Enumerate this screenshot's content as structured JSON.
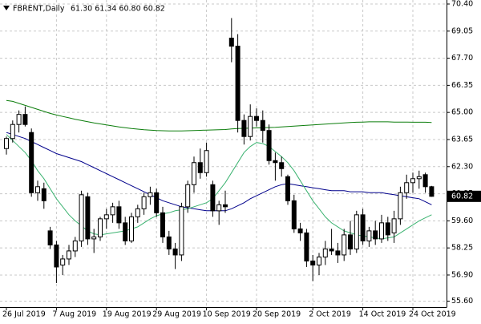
{
  "chart_data": {
    "type": "candlestick",
    "title": "FBRENT,Daily",
    "info": "61.30 61.34 60.80 60.82",
    "categories": [
      "26 Jul 2019",
      null,
      null,
      null,
      null,
      null,
      null,
      null,
      "7 Aug 2019",
      null,
      null,
      null,
      null,
      null,
      null,
      null,
      "19 Aug 2019",
      null,
      null,
      null,
      null,
      null,
      null,
      null,
      "29 Aug 2019",
      null,
      null,
      null,
      null,
      null,
      null,
      null,
      "10 Sep 2019",
      null,
      null,
      null,
      null,
      null,
      null,
      null,
      "20 Sep 2019",
      null,
      null,
      null,
      null,
      null,
      null,
      null,
      null,
      "2 Oct 2019",
      null,
      null,
      null,
      null,
      null,
      null,
      null,
      "14 Oct 2019",
      null,
      null,
      null,
      null,
      null,
      null,
      null,
      "24 Oct 2019",
      null,
      null,
      null
    ],
    "open": [
      63.2,
      63.7,
      64.4,
      64.9,
      64.0,
      61.0,
      61.2,
      59.1,
      58.4,
      57.4,
      57.7,
      58.1,
      58.6,
      60.8,
      58.7,
      58.8,
      59.7,
      59.9,
      60.3,
      59.5,
      58.6,
      59.8,
      60.2,
      60.8,
      61.0,
      60.0,
      58.8,
      58.2,
      57.9,
      60.3,
      61.4,
      62.5,
      62.0,
      61.4,
      60.1,
      60.4,
      68.7,
      68.3,
      64.6,
      63.8,
      64.8,
      64.6,
      64.1,
      62.6,
      62.5,
      61.8,
      60.6,
      59.2,
      59.0,
      57.6,
      57.4,
      57.8,
      58.2,
      58.1,
      57.9,
      58.9,
      58.2,
      59.9,
      58.6,
      59.1,
      58.7,
      59.5,
      59.0,
      59.7,
      61.0,
      61.5,
      61.7,
      61.9,
      61.3
    ],
    "high": [
      63.8,
      64.6,
      65.1,
      65.3,
      64.2,
      61.6,
      61.5,
      59.3,
      58.6,
      57.9,
      58.4,
      58.8,
      61.1,
      61.0,
      59.2,
      59.8,
      60.2,
      60.5,
      60.6,
      59.8,
      60.0,
      60.4,
      61.0,
      61.3,
      61.2,
      60.3,
      59.1,
      58.5,
      60.5,
      61.6,
      62.8,
      63.2,
      63.5,
      61.6,
      60.6,
      61.1,
      69.7,
      68.9,
      64.9,
      65.4,
      65.2,
      65.1,
      64.4,
      63.0,
      62.8,
      61.9,
      60.9,
      59.5,
      59.2,
      57.9,
      58.0,
      58.6,
      59.2,
      58.5,
      59.2,
      59.6,
      60.1,
      60.2,
      59.3,
      59.6,
      59.9,
      59.8,
      60.1,
      61.3,
      61.9,
      62.0,
      62.1,
      62.0,
      61.34
    ],
    "low": [
      62.9,
      63.5,
      64.0,
      64.3,
      60.8,
      60.6,
      60.2,
      58.2,
      56.5,
      56.9,
      57.4,
      57.8,
      58.3,
      58.4,
      58.0,
      58.6,
      59.2,
      59.5,
      59.2,
      58.4,
      58.5,
      59.5,
      59.9,
      60.4,
      59.8,
      58.5,
      57.9,
      57.2,
      57.6,
      60.0,
      61.0,
      61.7,
      61.8,
      59.8,
      59.4,
      60.0,
      67.5,
      64.0,
      63.4,
      63.6,
      64.3,
      63.5,
      62.4,
      61.6,
      61.8,
      60.4,
      59.0,
      58.6,
      57.3,
      56.6,
      56.9,
      57.4,
      57.9,
      57.5,
      57.6,
      57.9,
      58.0,
      58.4,
      58.3,
      58.4,
      58.5,
      58.6,
      58.5,
      59.4,
      60.7,
      61.0,
      61.2,
      61.0,
      60.8
    ],
    "close": [
      63.7,
      64.4,
      64.9,
      64.4,
      61.0,
      61.3,
      60.6,
      58.4,
      57.3,
      57.7,
      58.1,
      58.6,
      60.9,
      58.7,
      58.8,
      59.7,
      59.9,
      60.3,
      59.5,
      58.6,
      59.8,
      60.2,
      60.8,
      61.0,
      60.0,
      58.8,
      58.2,
      57.9,
      60.3,
      61.4,
      62.5,
      62.0,
      63.1,
      60.1,
      60.4,
      60.3,
      68.3,
      64.6,
      63.8,
      64.8,
      64.6,
      64.1,
      62.6,
      62.5,
      62.2,
      60.6,
      59.2,
      59.0,
      57.6,
      57.4,
      57.8,
      58.2,
      58.1,
      57.9,
      58.9,
      58.2,
      59.9,
      58.6,
      59.1,
      58.7,
      59.5,
      58.9,
      59.7,
      61.0,
      61.5,
      61.7,
      61.8,
      61.3,
      60.82
    ],
    "lines": [
      {
        "color": "#0b7d0b",
        "values": [
          65.6,
          65.55,
          65.45,
          65.35,
          65.25,
          65.15,
          65.05,
          64.95,
          64.87,
          64.8,
          64.73,
          64.66,
          64.6,
          64.54,
          64.48,
          64.43,
          64.38,
          64.33,
          64.28,
          64.24,
          64.2,
          64.17,
          64.14,
          64.12,
          64.1,
          64.09,
          64.08,
          64.08,
          64.08,
          64.09,
          64.1,
          64.11,
          64.12,
          64.13,
          64.14,
          64.15,
          64.18,
          64.2,
          64.21,
          64.22,
          64.23,
          64.24,
          64.25,
          64.26,
          64.28,
          64.3,
          64.32,
          64.34,
          64.36,
          64.38,
          64.4,
          64.42,
          64.44,
          64.46,
          64.48,
          64.5,
          64.51,
          64.52,
          64.53,
          64.53,
          64.53,
          64.53,
          64.52,
          64.52,
          64.52,
          64.51,
          64.51,
          64.51,
          64.5
        ]
      },
      {
        "color": "#00008b",
        "values": [
          64.0,
          63.9,
          63.8,
          63.7,
          63.55,
          63.4,
          63.25,
          63.1,
          62.95,
          62.85,
          62.75,
          62.65,
          62.55,
          62.4,
          62.25,
          62.1,
          61.95,
          61.8,
          61.65,
          61.5,
          61.35,
          61.2,
          61.05,
          60.9,
          60.75,
          60.6,
          60.5,
          60.4,
          60.3,
          60.25,
          60.2,
          60.15,
          60.1,
          60.1,
          60.1,
          60.1,
          60.2,
          60.35,
          60.5,
          60.7,
          60.85,
          61.0,
          61.15,
          61.3,
          61.4,
          61.45,
          61.4,
          61.35,
          61.3,
          61.25,
          61.2,
          61.15,
          61.1,
          61.1,
          61.1,
          61.05,
          61.05,
          61.05,
          61.0,
          61.0,
          61.0,
          60.95,
          60.9,
          60.85,
          60.8,
          60.75,
          60.7,
          60.55,
          60.4
        ]
      },
      {
        "color": "#3cb371",
        "values": [
          63.9,
          63.6,
          63.3,
          63.0,
          62.6,
          62.1,
          61.7,
          61.2,
          60.7,
          60.3,
          59.9,
          59.6,
          59.35,
          59.1,
          58.95,
          58.9,
          58.95,
          59.0,
          59.05,
          59.1,
          59.2,
          59.3,
          59.5,
          59.7,
          59.85,
          59.95,
          60.0,
          60.1,
          60.15,
          60.2,
          60.3,
          60.4,
          60.5,
          60.7,
          61.1,
          61.5,
          62.0,
          62.5,
          63.0,
          63.3,
          63.5,
          63.45,
          63.3,
          63.05,
          62.8,
          62.5,
          62.1,
          61.6,
          61.1,
          60.6,
          60.2,
          59.8,
          59.5,
          59.3,
          59.1,
          59.0,
          58.9,
          58.85,
          58.8,
          58.75,
          58.7,
          58.75,
          58.8,
          59.0,
          59.2,
          59.4,
          59.6,
          59.75,
          59.9
        ]
      }
    ],
    "ylim": [
      55.3,
      70.6
    ],
    "yticks": [
      {
        "value": 70.4,
        "label": "70.40"
      },
      {
        "value": 69.05,
        "label": "69.05"
      },
      {
        "value": 67.7,
        "label": "67.70"
      },
      {
        "value": 66.35,
        "label": "66.35"
      },
      {
        "value": 65,
        "label": "65.00"
      },
      {
        "value": 63.65,
        "label": "63.65"
      },
      {
        "value": 62.3,
        "label": "62.30"
      },
      {
        "value": 60.95,
        "label": "60.95"
      },
      {
        "value": 59.6,
        "label": "59.60"
      },
      {
        "value": 58.25,
        "label": "58.25"
      },
      {
        "value": 56.9,
        "label": "56.90"
      },
      {
        "value": 55.6,
        "label": "55.60"
      }
    ],
    "last_price": {
      "value": 60.82,
      "label": "60.82"
    },
    "grid": true,
    "bull_color": "#ffffff",
    "bear_color": "#000000"
  }
}
